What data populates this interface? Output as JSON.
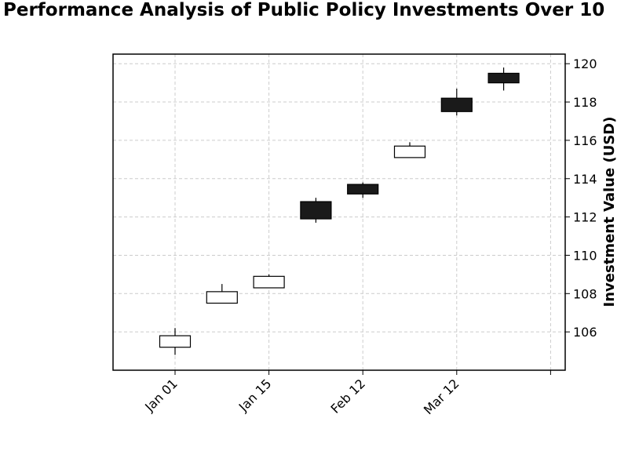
{
  "chart_data": {
    "type": "candlestick",
    "title": "Performance Analysis of Public Policy Investments Over 10",
    "xlabel": "",
    "ylabel": "Investment Value (USD)",
    "y_axis_side": "right",
    "ylim": [
      104.0,
      120.5
    ],
    "y_ticks": [
      106,
      108,
      110,
      112,
      114,
      116,
      118,
      120
    ],
    "x_tick_labels": [
      "Jan 01",
      "Jan 15",
      "Feb 12",
      "Mar 12",
      ""
    ],
    "grid": true,
    "legend": "none",
    "colors": {
      "up": "#ffffff",
      "down": "#1a1a1a",
      "edge": "#000000",
      "grid": "#cccccc"
    },
    "candles": [
      {
        "open": 105.2,
        "high": 106.2,
        "low": 104.8,
        "close": 105.8
      },
      {
        "open": 107.5,
        "high": 108.5,
        "low": 107.5,
        "close": 108.1
      },
      {
        "open": 108.3,
        "high": 109.0,
        "low": 108.3,
        "close": 108.9
      },
      {
        "open": 112.8,
        "high": 113.0,
        "low": 111.7,
        "close": 111.9
      },
      {
        "open": 113.7,
        "high": 113.8,
        "low": 113.0,
        "close": 113.2
      },
      {
        "open": 115.1,
        "high": 115.9,
        "low": 115.1,
        "close": 115.7
      },
      {
        "open": 118.2,
        "high": 118.7,
        "low": 117.3,
        "close": 117.5
      },
      {
        "open": 119.5,
        "high": 119.8,
        "low": 118.6,
        "close": 119.0
      }
    ]
  }
}
